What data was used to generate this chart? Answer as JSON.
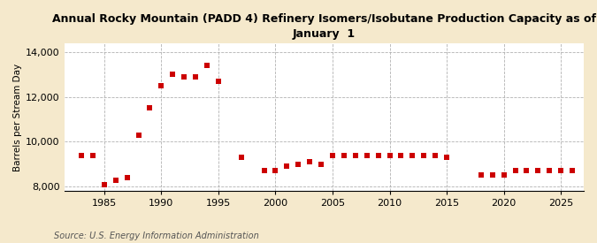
{
  "title": "Annual Rocky Mountain (PADD 4) Refinery Isomers/Isobutane Production Capacity as of\nJanuary  1",
  "ylabel": "Barrels per Stream Day",
  "source": "Source: U.S. Energy Information Administration",
  "background_color": "#f5e9cc",
  "plot_bg_color": "#ffffff",
  "marker_color": "#cc0000",
  "years": [
    1983,
    1984,
    1985,
    1986,
    1987,
    1988,
    1989,
    1990,
    1991,
    1992,
    1993,
    1994,
    1995,
    1997,
    1999,
    2000,
    2001,
    2002,
    2003,
    2004,
    2005,
    2006,
    2007,
    2008,
    2009,
    2010,
    2011,
    2012,
    2013,
    2014,
    2015,
    2018,
    2019,
    2020,
    2021,
    2022,
    2023,
    2024,
    2025,
    2026
  ],
  "values": [
    9400,
    9400,
    8100,
    8300,
    8400,
    10300,
    11500,
    12500,
    13000,
    12900,
    12900,
    13400,
    12700,
    9300,
    8700,
    8700,
    8900,
    9000,
    9100,
    9000,
    9400,
    9400,
    9400,
    9400,
    9400,
    9400,
    9400,
    9400,
    9400,
    9400,
    9300,
    8500,
    8500,
    8500,
    8700,
    8700,
    8700,
    8700,
    8700,
    8700
  ],
  "ylim": [
    7800,
    14400
  ],
  "yticks": [
    8000,
    10000,
    12000,
    14000
  ],
  "xlim": [
    1981.5,
    2027
  ],
  "xticks": [
    1985,
    1990,
    1995,
    2000,
    2005,
    2010,
    2015,
    2020,
    2025
  ],
  "title_fontsize": 9,
  "label_fontsize": 8,
  "source_fontsize": 7
}
